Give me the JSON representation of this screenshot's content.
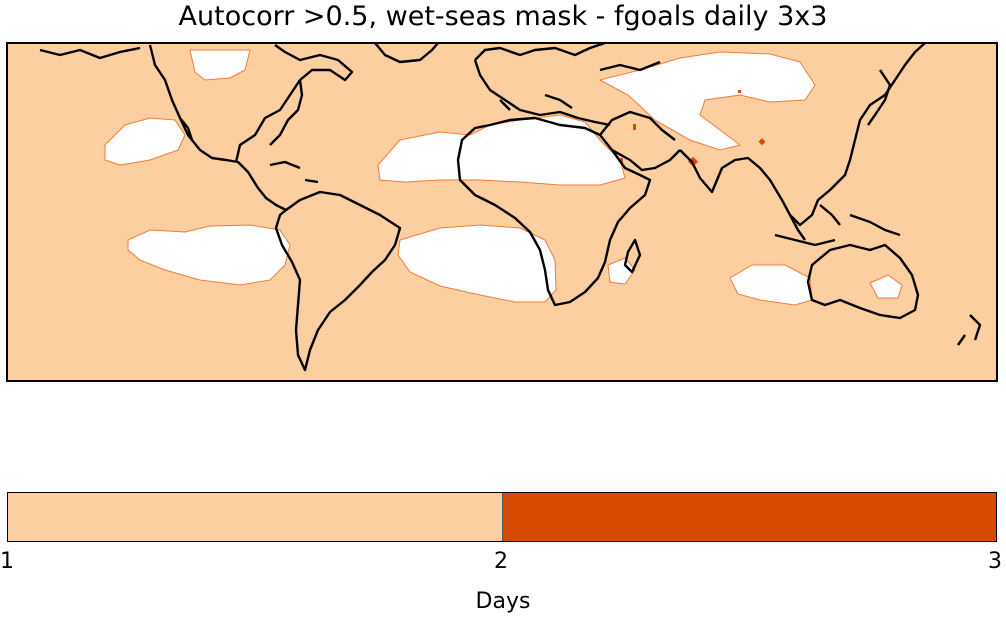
{
  "title": "Autocorr >0.5, wet-seas mask - fgoals daily 3x3",
  "colors": {
    "background": "#fbcfa0",
    "high": "#d64b00",
    "mask": "#ffffff",
    "mask_edge": "#f07c3a",
    "coast": "#000000"
  },
  "colorbar": {
    "label": "Days",
    "ticks": [
      "1",
      "2",
      "3"
    ],
    "bins": [
      {
        "from": 1,
        "to": 2,
        "color": "#fbcfa0"
      },
      {
        "from": 2,
        "to": 3,
        "color": "#d64b00"
      }
    ]
  }
}
